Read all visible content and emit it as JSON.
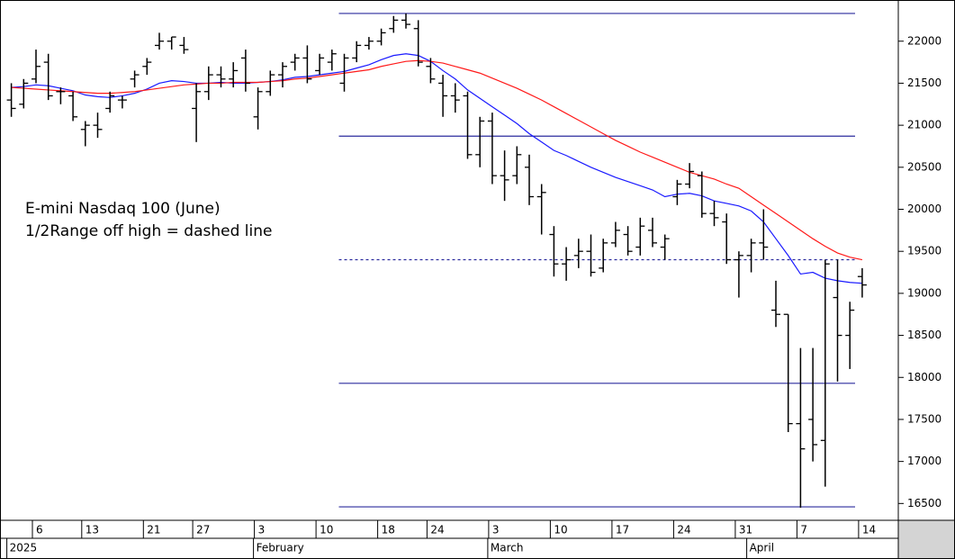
{
  "chart_data": {
    "type": "ohlc",
    "annotations": [
      "E-mini Nasdaq 100 (June)",
      "1/2Range off high = dashed line"
    ],
    "x": [
      "2025-01-02",
      "2025-01-03",
      "2025-01-06",
      "2025-01-07",
      "2025-01-08",
      "2025-01-10",
      "2025-01-13",
      "2025-01-14",
      "2025-01-15",
      "2025-01-16",
      "2025-01-17",
      "2025-01-21",
      "2025-01-22",
      "2025-01-23",
      "2025-01-24",
      "2025-01-27",
      "2025-01-28",
      "2025-01-29",
      "2025-01-30",
      "2025-01-31",
      "2025-02-03",
      "2025-02-04",
      "2025-02-05",
      "2025-02-06",
      "2025-02-07",
      "2025-02-10",
      "2025-02-11",
      "2025-02-12",
      "2025-02-13",
      "2025-02-14",
      "2025-02-18",
      "2025-02-19",
      "2025-02-20",
      "2025-02-21",
      "2025-02-24",
      "2025-02-25",
      "2025-02-26",
      "2025-02-27",
      "2025-02-28",
      "2025-03-03",
      "2025-03-04",
      "2025-03-05",
      "2025-03-06",
      "2025-03-07",
      "2025-03-10",
      "2025-03-11",
      "2025-03-12",
      "2025-03-13",
      "2025-03-14",
      "2025-03-17",
      "2025-03-18",
      "2025-03-19",
      "2025-03-20",
      "2025-03-21",
      "2025-03-24",
      "2025-03-25",
      "2025-03-26",
      "2025-03-27",
      "2025-03-28",
      "2025-03-31",
      "2025-04-01",
      "2025-04-02",
      "2025-04-03",
      "2025-04-04",
      "2025-04-07",
      "2025-04-08",
      "2025-04-09",
      "2025-04-10",
      "2025-04-11",
      "2025-04-14"
    ],
    "open": [
      21300,
      21250,
      21550,
      21750,
      21400,
      21350,
      20950,
      21000,
      21200,
      21300,
      21550,
      21700,
      21950,
      22000,
      21950,
      21200,
      21400,
      21600,
      21550,
      21800,
      21100,
      21400,
      21600,
      21750,
      21800,
      21650,
      21750,
      21500,
      21800,
      21950,
      22000,
      22150,
      22250,
      22150,
      21700,
      21500,
      21350,
      21350,
      20650,
      21050,
      20400,
      20400,
      20500,
      20150,
      19700,
      19350,
      19450,
      19500,
      19300,
      19600,
      19700,
      19550,
      19750,
      19550,
      20150,
      20300,
      20400,
      19950,
      19850,
      19400,
      19450,
      19600,
      18800,
      18750,
      17450,
      17500,
      17250,
      18950,
      18500,
      19200
    ],
    "high": [
      21500,
      21550,
      21900,
      21850,
      21450,
      21400,
      21050,
      21150,
      21400,
      21350,
      21650,
      21800,
      22100,
      22050,
      22050,
      21500,
      21700,
      21700,
      21750,
      21900,
      21450,
      21650,
      21750,
      21850,
      21950,
      21850,
      21900,
      21850,
      22000,
      22050,
      22150,
      22300,
      22330,
      22250,
      21800,
      21600,
      21500,
      21400,
      21100,
      21150,
      20700,
      20750,
      20650,
      20300,
      19800,
      19550,
      19650,
      19700,
      19650,
      19850,
      19800,
      19900,
      19900,
      19700,
      20350,
      20550,
      20450,
      20100,
      19950,
      19500,
      19650,
      20000,
      19150,
      18750,
      18350,
      18350,
      19400,
      19400,
      18900,
      19300
    ],
    "low": [
      21100,
      21200,
      21500,
      21300,
      21250,
      21050,
      20750,
      20850,
      21150,
      21200,
      21450,
      21600,
      21900,
      21900,
      21850,
      20800,
      21300,
      21450,
      21450,
      21400,
      20950,
      21350,
      21450,
      21650,
      21500,
      21600,
      21650,
      21400,
      21750,
      21900,
      21950,
      22100,
      22150,
      21700,
      21500,
      21100,
      21150,
      20600,
      20500,
      20300,
      20100,
      20300,
      20050,
      19700,
      19200,
      19150,
      19300,
      19200,
      19250,
      19550,
      19450,
      19450,
      19550,
      19400,
      20050,
      20250,
      19900,
      19800,
      19350,
      18950,
      19250,
      19400,
      18600,
      17350,
      16450,
      17000,
      16700,
      17950,
      18100,
      18950
    ],
    "close": [
      21200,
      21500,
      21700,
      21350,
      21400,
      21100,
      21000,
      20950,
      21350,
      21300,
      21600,
      21750,
      22000,
      22050,
      21900,
      21400,
      21600,
      21550,
      21650,
      21500,
      21400,
      21600,
      21700,
      21800,
      21550,
      21800,
      21850,
      21800,
      21950,
      22000,
      22100,
      22250,
      22200,
      21750,
      21550,
      21350,
      21300,
      20650,
      21050,
      20400,
      20350,
      20650,
      20150,
      20200,
      19350,
      19400,
      19500,
      19250,
      19600,
      19750,
      19500,
      19800,
      19600,
      19650,
      20300,
      20450,
      19950,
      19900,
      19400,
      19450,
      19600,
      19550,
      18750,
      17450,
      17150,
      17200,
      19350,
      18500,
      18800,
      19100
    ],
    "bar_color": "#000000",
    "averages": [
      {
        "color": "#1a1aff",
        "values": [
          21450,
          21460,
          21480,
          21470,
          21440,
          21410,
          21360,
          21340,
          21330,
          21350,
          21380,
          21430,
          21500,
          21530,
          21520,
          21500,
          21500,
          21510,
          21500,
          21500,
          21510,
          21520,
          21540,
          21570,
          21580,
          21600,
          21620,
          21640,
          21680,
          21720,
          21780,
          21830,
          21850,
          21830,
          21760,
          21650,
          21550,
          21420,
          21320,
          21220,
          21120,
          21020,
          20900,
          20800,
          20700,
          20640,
          20570,
          20500,
          20440,
          20380,
          20330,
          20280,
          20230,
          20150,
          20180,
          20190,
          20160,
          20100,
          20070,
          20040,
          19980,
          19850,
          19650,
          19450,
          19230,
          19250,
          19180,
          19150,
          19130,
          19120
        ]
      },
      {
        "color": "#ff1a1a",
        "values": [
          21450,
          21440,
          21430,
          21420,
          21410,
          21400,
          21390,
          21380,
          21380,
          21390,
          21400,
          21420,
          21440,
          21460,
          21480,
          21490,
          21500,
          21500,
          21510,
          21510,
          21510,
          21520,
          21530,
          21550,
          21560,
          21580,
          21600,
          21620,
          21640,
          21660,
          21700,
          21730,
          21760,
          21770,
          21760,
          21740,
          21700,
          21660,
          21620,
          21560,
          21500,
          21440,
          21370,
          21300,
          21220,
          21140,
          21060,
          20980,
          20900,
          20820,
          20750,
          20680,
          20620,
          20560,
          20500,
          20440,
          20400,
          20360,
          20300,
          20250,
          20150,
          20050,
          19950,
          19850,
          19750,
          19650,
          19560,
          19480,
          19430,
          19400
        ]
      }
    ],
    "levels": [
      22330,
      20870,
      17930,
      16460
    ],
    "dashed_level": 19400,
    "levels_from": "2025-02-12",
    "level_color": "#2b2b9e",
    "ylim": [
      16300,
      22490
    ],
    "yticks": [
      16500,
      17000,
      17500,
      18000,
      18500,
      19000,
      19500,
      20000,
      20500,
      21000,
      21500,
      22000
    ],
    "xticks": [
      {
        "value": "2025-01-06",
        "label": "6"
      },
      {
        "value": "2025-01-13",
        "label": "13"
      },
      {
        "value": "2025-01-21",
        "label": "21"
      },
      {
        "value": "2025-01-27",
        "label": "27"
      },
      {
        "value": "2025-02-03",
        "label": "3"
      },
      {
        "value": "2025-02-10",
        "label": "10"
      },
      {
        "value": "2025-02-18",
        "label": "18"
      },
      {
        "value": "2025-02-24",
        "label": "24"
      },
      {
        "value": "2025-03-03",
        "label": "3"
      },
      {
        "value": "2025-03-10",
        "label": "10"
      },
      {
        "value": "2025-03-17",
        "label": "17"
      },
      {
        "value": "2025-03-24",
        "label": "24"
      },
      {
        "value": "2025-03-31",
        "label": "31"
      },
      {
        "value": "2025-04-07",
        "label": "7"
      },
      {
        "value": "2025-04-14",
        "label": "14"
      }
    ],
    "month_labels": [
      {
        "value": "2025-01-02",
        "label": "2025"
      },
      {
        "value": "2025-02-03",
        "label": "February"
      },
      {
        "value": "2025-03-03",
        "label": "March"
      },
      {
        "value": "2025-04-01",
        "label": "April"
      }
    ]
  }
}
